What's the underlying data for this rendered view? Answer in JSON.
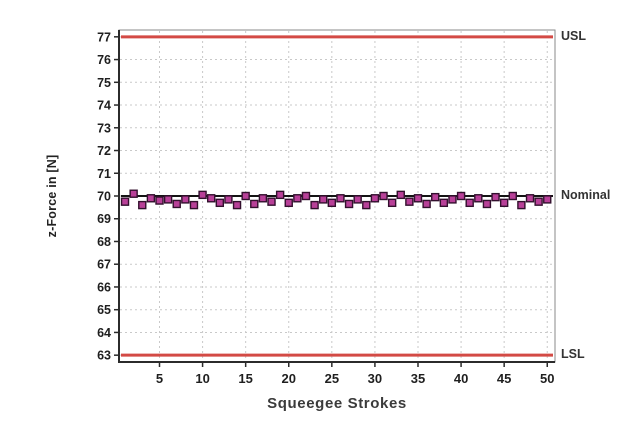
{
  "figure": {
    "background": "#ffffff"
  },
  "labels": {
    "xlabel": "Squeegee Strokes",
    "ylabel": "z-Force in [N]"
  },
  "chart_data": {
    "type": "scatter",
    "title": "",
    "xlabel": "Squeegee Strokes",
    "ylabel": "z-Force in [N]",
    "xlim": [
      0.3,
      50.9
    ],
    "ylim": [
      62.7,
      77.3
    ],
    "x_ticks": [
      5,
      10,
      15,
      20,
      25,
      30,
      35,
      40,
      45,
      50
    ],
    "y_ticks": [
      63,
      64,
      65,
      66,
      67,
      68,
      69,
      70,
      71,
      72,
      73,
      74,
      75,
      76,
      77
    ],
    "grid": true,
    "grid_color": "#c9c9c9",
    "axis_color": "#2b2b2b",
    "frame_color": "#8a8a8a",
    "tick_label_color": "#1f1f1f",
    "x": [
      1,
      2,
      3,
      4,
      5,
      6,
      7,
      8,
      9,
      10,
      11,
      12,
      13,
      14,
      15,
      16,
      17,
      18,
      19,
      20,
      21,
      22,
      23,
      24,
      25,
      26,
      27,
      28,
      29,
      30,
      31,
      32,
      33,
      34,
      35,
      36,
      37,
      38,
      39,
      40,
      41,
      42,
      43,
      44,
      45,
      46,
      47,
      48,
      49,
      50
    ],
    "y": [
      69.75,
      70.1,
      69.6,
      69.9,
      69.8,
      69.85,
      69.65,
      69.85,
      69.6,
      70.05,
      69.9,
      69.7,
      69.85,
      69.6,
      70.0,
      69.65,
      69.9,
      69.75,
      70.05,
      69.7,
      69.9,
      70.0,
      69.6,
      69.85,
      69.7,
      69.9,
      69.65,
      69.85,
      69.6,
      69.9,
      70.0,
      69.7,
      70.05,
      69.75,
      69.9,
      69.65,
      69.95,
      69.7,
      69.85,
      70.0,
      69.7,
      69.9,
      69.65,
      69.95,
      69.7,
      70.0,
      69.6,
      69.9,
      69.75,
      69.85
    ],
    "marker": {
      "shape": "square",
      "fill": "#b84098",
      "stroke": "#33102e",
      "size": 7
    },
    "reference_lines": [
      {
        "label": "USL",
        "value": 77,
        "color": "#d34a45",
        "width": 3
      },
      {
        "label": "Nominal",
        "value": 70,
        "color": "#141414",
        "width": 2
      },
      {
        "label": "LSL",
        "value": 63,
        "color": "#d34a45",
        "width": 3
      }
    ],
    "legend_position": "right-of-lines"
  }
}
